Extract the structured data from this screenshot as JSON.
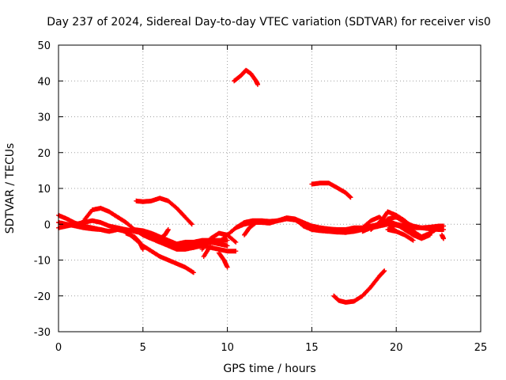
{
  "chart_data": {
    "type": "scatter",
    "title": "Day 237 of 2024, Sidereal Day-to-day VTEC variation (SDTVAR) for receiver vis0",
    "xlabel": "GPS time / hours",
    "ylabel": "SDTVAR / TECUs",
    "xlim": [
      0,
      25
    ],
    "ylim": [
      -30,
      50
    ],
    "xticks": [
      "0",
      "5",
      "10",
      "15",
      "20",
      "25"
    ],
    "yticks": [
      "-30",
      "-20",
      "-10",
      "0",
      "10",
      "20",
      "30",
      "40",
      "50"
    ],
    "grid": true,
    "marker": "+",
    "series_color": "#ff0000",
    "tracks": [
      {
        "x": [
          0,
          0.5,
          1,
          1.5,
          2,
          2.5,
          3
        ],
        "y": [
          2.5,
          1.5,
          0.3,
          -0.5,
          -1,
          -1.5,
          -2
        ]
      },
      {
        "x": [
          0,
          0.5,
          1,
          1.5,
          2,
          2.5,
          3,
          3.5,
          4,
          4.5,
          5,
          5.5,
          6,
          6.5,
          7,
          7.5,
          8,
          8.5,
          9,
          9.5,
          10
        ],
        "y": [
          -1,
          -0.5,
          0,
          0.5,
          1,
          0.5,
          -0.5,
          -1,
          -1.5,
          -2,
          -2.5,
          -3.5,
          -4.5,
          -5.5,
          -5.5,
          -5,
          -5,
          -4.5,
          -4.5,
          -4.5,
          -4.5
        ]
      },
      {
        "x": [
          0,
          0.5,
          1,
          1.5,
          2,
          2.5,
          3,
          3.5,
          4
        ],
        "y": [
          0.5,
          0,
          -0.5,
          -1,
          -1.3,
          -1.5,
          -2,
          -1.5,
          -2
        ]
      },
      {
        "x": [
          1.5,
          2,
          2.5,
          3,
          3.5,
          4,
          4.5,
          5,
          5.5,
          6,
          6.5,
          7,
          7.5,
          8
        ],
        "y": [
          1,
          4,
          4.5,
          3.5,
          2,
          0.5,
          -1.5,
          -3,
          -4,
          -5,
          -6,
          -7,
          -7,
          -6.5
        ]
      },
      {
        "x": [
          3.5,
          4,
          4.5,
          5,
          5.5,
          6,
          6.5,
          7,
          7.5,
          8
        ],
        "y": [
          -1,
          -2,
          -4,
          -6,
          -7.5,
          -9,
          -10,
          -11,
          -12,
          -13.5
        ]
      },
      {
        "x": [
          4,
          4.5,
          4.8,
          5
        ],
        "y": [
          -2.5,
          -3.5,
          -5,
          -7
        ]
      },
      {
        "x": [
          4.5,
          5,
          5.5,
          6,
          6.5,
          7,
          7.5,
          8,
          8.5,
          9,
          9.5,
          10
        ],
        "y": [
          -1.5,
          -1.8,
          -2.5,
          -3.5,
          -4.5,
          -5.5,
          -6,
          -6,
          -5.5,
          -5,
          -5.5,
          -6
        ]
      },
      {
        "x": [
          5,
          5.5,
          6,
          6.5,
          7,
          7.5,
          8,
          8.5,
          9,
          9.5,
          10,
          10.5
        ],
        "y": [
          -3,
          -4,
          -5,
          -5.5,
          -6,
          -6.5,
          -6.5,
          -6,
          -6.5,
          -7,
          -7.5,
          -7.5
        ]
      },
      {
        "x": [
          6,
          6.3,
          6.5
        ],
        "y": [
          -4,
          -3,
          -1.5
        ]
      },
      {
        "x": [
          8.5,
          9,
          9.5,
          10,
          10.5
        ],
        "y": [
          -7,
          -4,
          -2.5,
          -3,
          -5
        ]
      },
      {
        "x": [
          8.6,
          9
        ],
        "y": [
          -9,
          -6
        ]
      },
      {
        "x": [
          9.5,
          9.8,
          10
        ],
        "y": [
          -8,
          -10,
          -12
        ]
      },
      {
        "x": [
          4.6,
          5,
          5.5,
          6,
          6.5,
          7,
          7.5,
          7.9
        ],
        "y": [
          6.5,
          6.3,
          6.5,
          7.3,
          6.5,
          4.5,
          2,
          0
        ]
      },
      {
        "x": [
          10.4,
          10.8,
          11.1,
          11.4,
          11.7,
          11.8
        ],
        "y": [
          40,
          41.5,
          43,
          42,
          40,
          39
        ]
      },
      {
        "x": [
          9.5,
          10,
          10.5,
          11,
          11.5,
          12,
          12.5,
          13,
          13.5,
          14,
          14.5,
          15,
          15.5,
          16,
          16.5,
          17
        ],
        "y": [
          -5,
          -3,
          -1,
          0.5,
          1,
          1,
          0.8,
          1,
          1.5,
          1.5,
          0.5,
          -0.5,
          -1,
          -1.5,
          -2,
          -2
        ]
      },
      {
        "x": [
          10.5,
          11,
          11.5,
          12,
          12.5,
          13,
          13.5,
          14,
          14.5,
          15,
          15.5,
          16,
          16.5,
          17,
          17.5,
          18,
          18.5,
          19,
          19.5,
          20,
          20.5,
          21,
          21.5,
          22,
          22.5,
          22.8
        ],
        "y": [
          -1,
          0,
          0.5,
          0.5,
          0.3,
          1,
          1.8,
          1.5,
          -0.5,
          -1.5,
          -1.8,
          -2,
          -2.2,
          -2.3,
          -2,
          -1.5,
          -1,
          -0.5,
          0,
          -0.3,
          -0.8,
          -1,
          -1,
          -0.8,
          -0.5,
          -0.5
        ]
      },
      {
        "x": [
          11,
          11.3,
          11.7
        ],
        "y": [
          -3,
          -1,
          0.5
        ]
      },
      {
        "x": [
          12.5,
          13,
          13.5,
          14,
          14.5,
          15,
          15.5,
          16,
          16.5,
          17,
          17.5,
          18,
          18.5,
          19,
          19.5,
          20,
          20.5,
          21
        ],
        "y": [
          0.5,
          1,
          1.5,
          1.2,
          0,
          -1,
          -1.5,
          -1.5,
          -1.8,
          -1.5,
          -1,
          -1,
          -0.5,
          0,
          0.5,
          0,
          -0.5,
          -0.8
        ]
      },
      {
        "x": [
          15,
          15.5,
          16,
          16.5,
          17,
          17.5,
          18,
          18.5,
          19,
          19.5,
          20,
          20.5,
          21,
          21.5,
          22,
          22.5,
          22.8
        ],
        "y": [
          -0.5,
          -1,
          -1.3,
          -1.5,
          -1.5,
          -1.3,
          -1.3,
          -1,
          -0.5,
          1.5,
          2,
          0.5,
          -0.5,
          -1,
          -1.3,
          -1.5,
          -1.5
        ]
      },
      {
        "x": [
          17.5,
          18,
          18.5,
          19,
          19.5,
          20
        ],
        "y": [
          -2,
          -1,
          1,
          2,
          0,
          -2
        ]
      },
      {
        "x": [
          18,
          18.5,
          19,
          19.5,
          20,
          20.5,
          21,
          21.5,
          22
        ],
        "y": [
          -2,
          -1,
          0,
          1,
          0,
          -1.5,
          -3,
          -4,
          -3
        ]
      },
      {
        "x": [
          18.5,
          19,
          19.2,
          19.5,
          20,
          20.5,
          21
        ],
        "y": [
          -1.5,
          0.5,
          1.5,
          3.5,
          2.5,
          1,
          -1
        ]
      },
      {
        "x": [
          19.5,
          20,
          20.5,
          21
        ],
        "y": [
          -1.5,
          -2,
          -3,
          -4.5
        ]
      },
      {
        "x": [
          20.5,
          21,
          21.5,
          22,
          22.5
        ],
        "y": [
          -1,
          -2,
          -3.5,
          -2.5,
          -1
        ]
      },
      {
        "x": [
          22.7,
          22.8
        ],
        "y": [
          -3,
          -4
        ]
      },
      {
        "x": [
          15,
          15.5,
          16,
          16.5,
          17,
          17.3
        ],
        "y": [
          11.2,
          11.5,
          11.5,
          10.2,
          8.8,
          7.5
        ]
      },
      {
        "x": [
          16.3,
          16.6,
          17,
          17.5,
          18,
          18.5,
          19,
          19.3
        ],
        "y": [
          -20,
          -21.3,
          -21.8,
          -21.5,
          -20,
          -17.5,
          -14.5,
          -13
        ]
      }
    ]
  }
}
